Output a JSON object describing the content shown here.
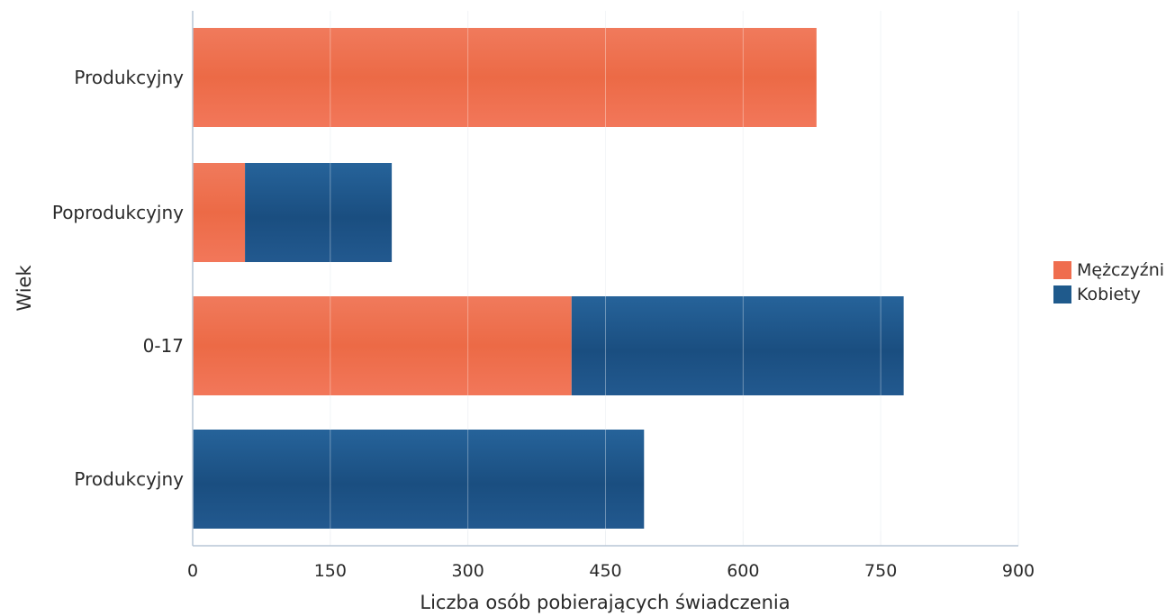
{
  "chart_data": {
    "type": "bar",
    "orientation": "horizontal",
    "stacked": true,
    "categories": [
      "Produkcyjny",
      "Poprodukcyjny",
      "0-17",
      "Produkcyjny"
    ],
    "series": [
      {
        "name": "Mężczyźni",
        "color": "#ef6d4e",
        "values": [
          680,
          57,
          413,
          0
        ]
      },
      {
        "name": "Kobiety",
        "color": "#1f5a8c",
        "values": [
          0,
          160,
          362,
          492
        ]
      }
    ],
    "xlabel": "Liczba osób pobierających świadczenia",
    "ylabel": "Wiek",
    "xlim": [
      0,
      900
    ],
    "xticks": [
      0,
      150,
      300,
      450,
      600,
      750,
      900
    ],
    "grid": true,
    "legend_position": "right"
  }
}
